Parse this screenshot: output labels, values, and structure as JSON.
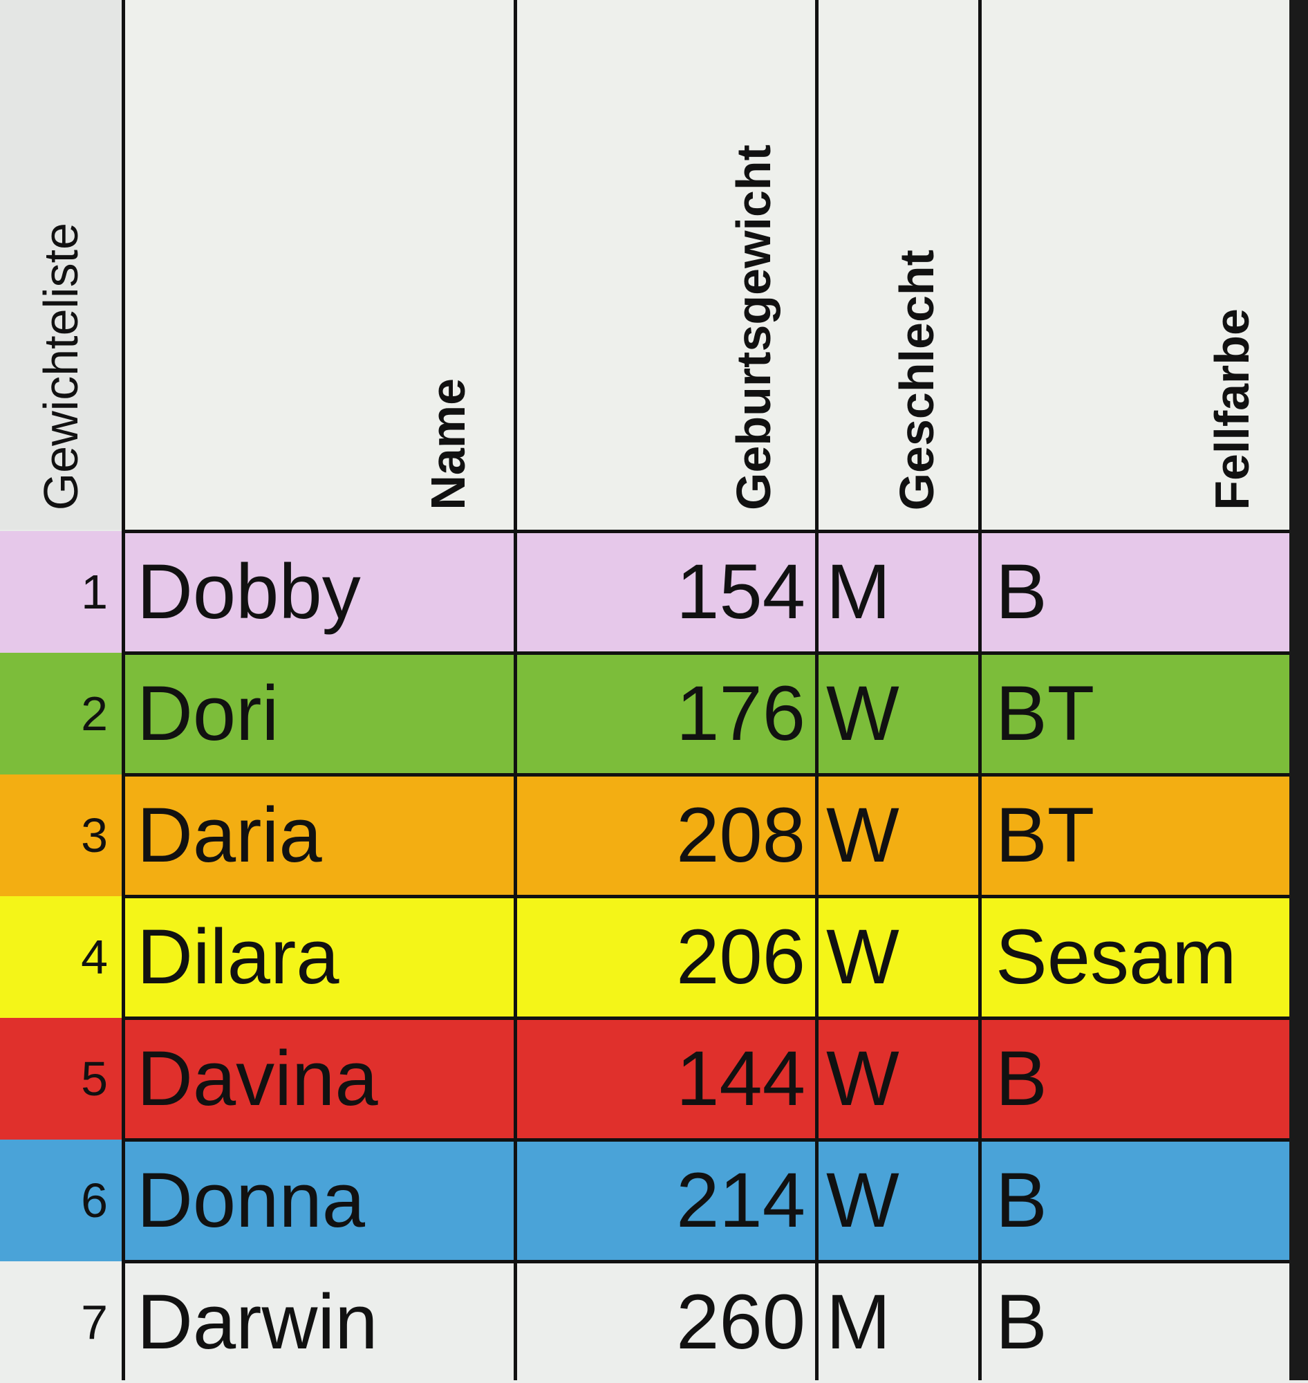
{
  "header": {
    "list_title": "Gewichteliste",
    "name": "Name",
    "weight": "Geburtsgewicht",
    "sex": "Geschlecht",
    "fur": "Fellfarbe"
  },
  "rows": [
    {
      "nr": "1",
      "name": "Dobby",
      "weight": "154",
      "sex": "M",
      "fur": "B",
      "color": "#e6c8ea"
    },
    {
      "nr": "2",
      "name": "Dori",
      "weight": "176",
      "sex": "W",
      "fur": "BT",
      "color": "#7cbd3a"
    },
    {
      "nr": "3",
      "name": "Daria",
      "weight": "208",
      "sex": "W",
      "fur": "BT",
      "color": "#f3ae12"
    },
    {
      "nr": "4",
      "name": "Dilara",
      "weight": "206",
      "sex": "W",
      "fur": "Sesam",
      "color": "#f4f518"
    },
    {
      "nr": "5",
      "name": "Davina",
      "weight": "144",
      "sex": "W",
      "fur": "B",
      "color": "#e0302c"
    },
    {
      "nr": "6",
      "name": "Donna",
      "weight": "214",
      "sex": "W",
      "fur": "B",
      "color": "#4aa3d8"
    },
    {
      "nr": "7",
      "name": "Darwin",
      "weight": "260",
      "sex": "M",
      "fur": "B",
      "color": "#eceeec"
    }
  ]
}
